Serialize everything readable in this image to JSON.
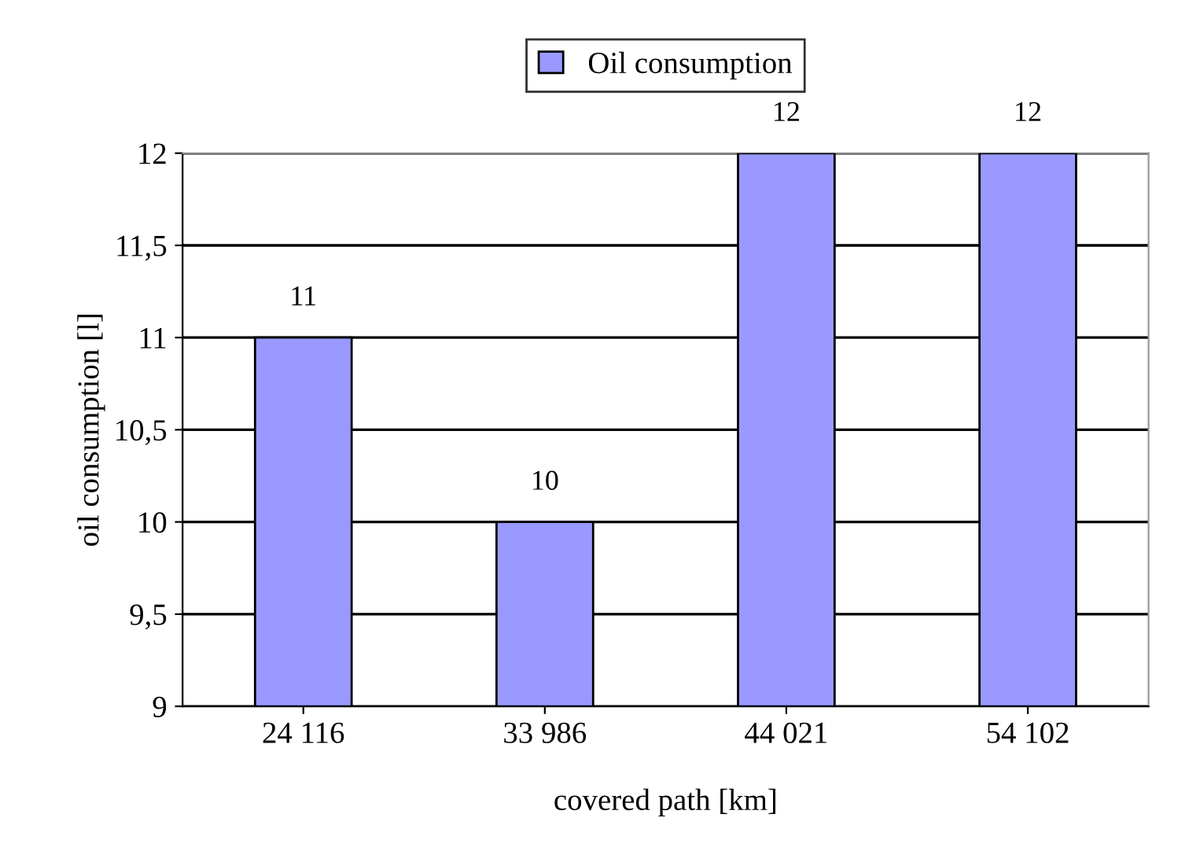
{
  "chart_data": {
    "type": "bar",
    "xlabel": "covered path [km]",
    "ylabel": "oil consumption [l]",
    "categories": [
      "24 116",
      "33 986",
      "44 021",
      "54 102"
    ],
    "series": [
      {
        "name": "Oil consumption",
        "color": "#9999ff",
        "values": [
          11,
          10,
          12,
          12
        ]
      }
    ],
    "ylim": [
      9,
      12
    ],
    "yticks": [
      9,
      {
        "value": 9.5,
        "label": "9,5"
      },
      10,
      {
        "value": 10.5,
        "label": "10,5"
      },
      11,
      {
        "value": 11.5,
        "label": "11,5"
      },
      12
    ],
    "grid": "y",
    "legend": "top",
    "data_labels": true
  }
}
